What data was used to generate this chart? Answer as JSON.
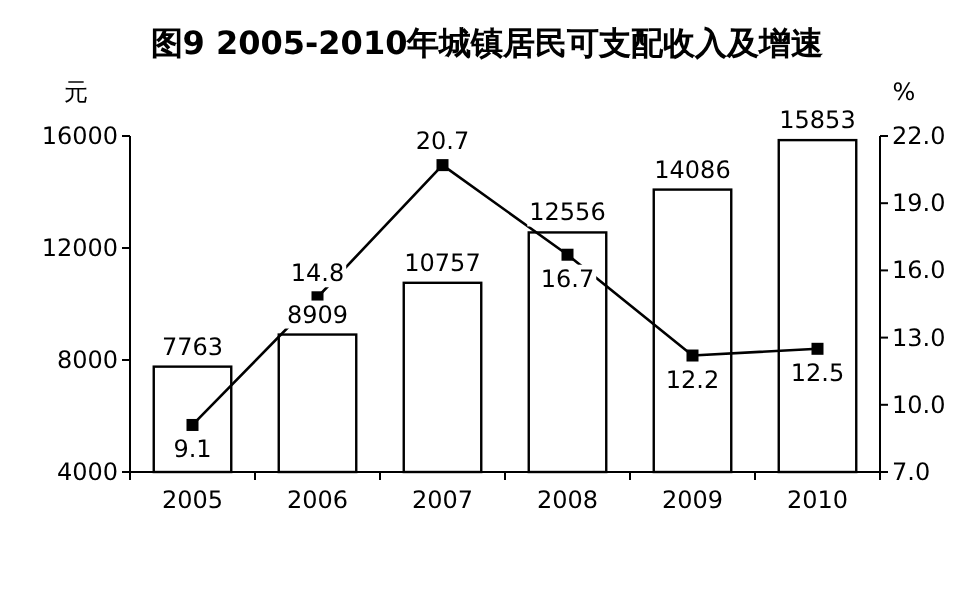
{
  "chart_data": {
    "type": "bar",
    "title": "图9 2005-2010年城镇居民可支配收入及增速",
    "ylabel": "元",
    "y2label": "%",
    "categories": [
      "2005",
      "2006",
      "2007",
      "2008",
      "2009",
      "2010"
    ],
    "series": [
      {
        "color": "#ffffff",
        "values": [
          7763,
          8909,
          10757,
          12556,
          14086,
          15853
        ]
      },
      {
        "type": "line",
        "axis": "y2",
        "color": "#000000",
        "marker": "square",
        "values": [
          9.1,
          14.8,
          20.7,
          16.7,
          12.2,
          12.5
        ]
      }
    ],
    "ylim": [
      4000,
      16000
    ],
    "yticks": [
      4000,
      8000,
      12000,
      16000
    ],
    "y2lim": [
      7.0,
      22.0
    ],
    "y2ticks": [
      {
        "value": 7,
        "label": "7.0"
      },
      {
        "value": 10,
        "label": "10.0"
      },
      {
        "value": 13,
        "label": "13.0"
      },
      {
        "value": 16,
        "label": "16.0"
      },
      {
        "value": 19,
        "label": "19.0"
      },
      {
        "value": 22,
        "label": "22.0"
      }
    ],
    "data_labels": true,
    "grid": false
  }
}
